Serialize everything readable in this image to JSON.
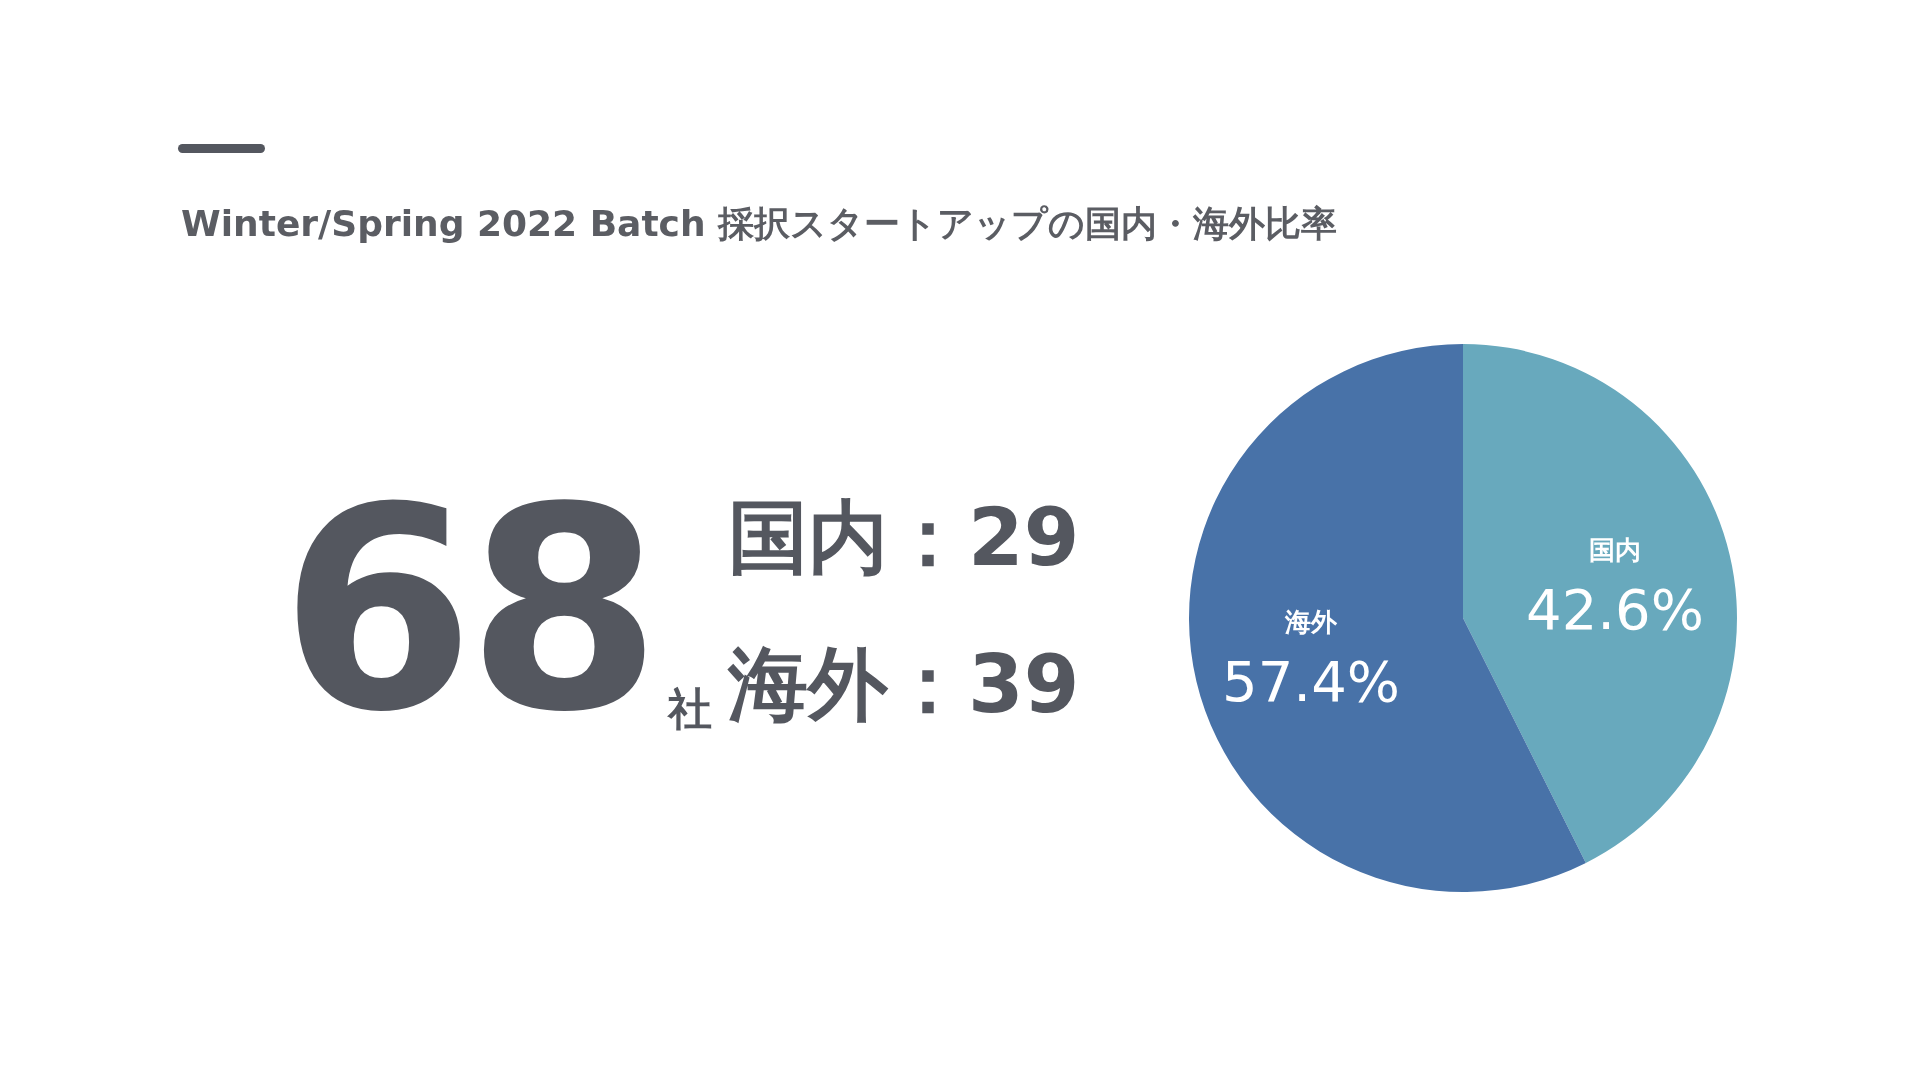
{
  "chart_data": [
    {
      "type": "other",
      "annotations": [
        "68",
        "社",
        "国内：29",
        "海外：39"
      ]
    },
    {
      "type": "pie",
      "title": "Winter/Spring 2022 Batch 採択スタートアップの国内・海外比率",
      "categories": [
        "国内",
        "海外"
      ],
      "values": [
        42.6,
        57.4
      ],
      "colors": [
        "#68a9bd",
        "#4872a8"
      ],
      "value_labels": [
        "42.6%",
        "57.4%"
      ],
      "legend": false
    }
  ]
}
